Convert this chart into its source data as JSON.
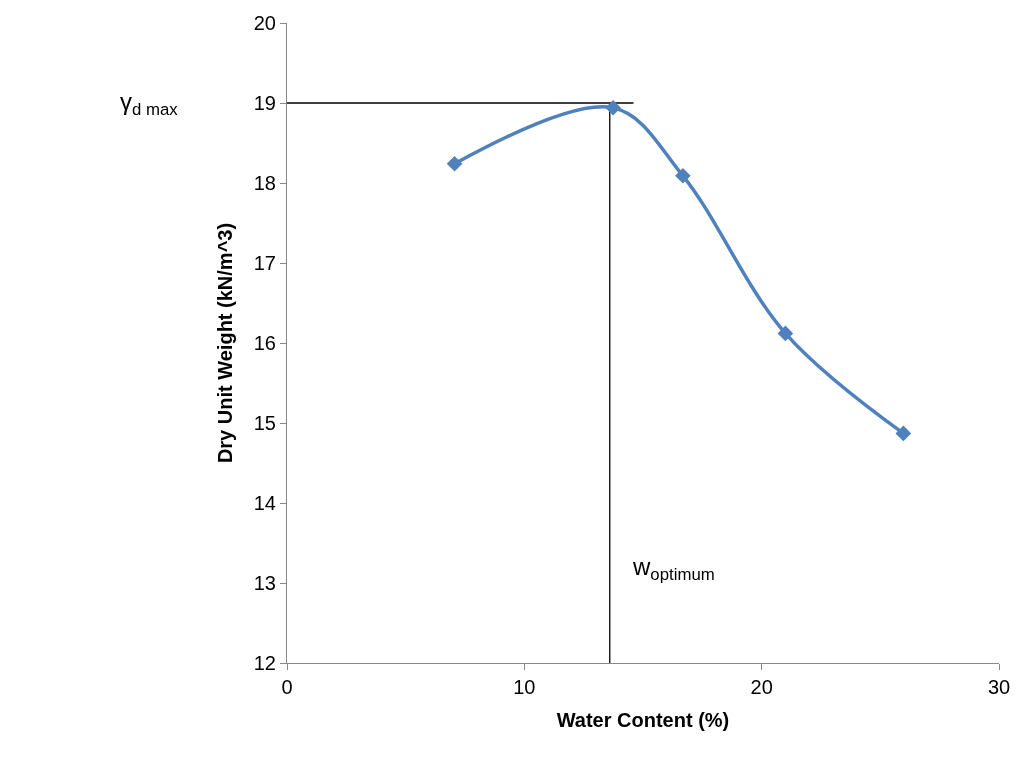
{
  "chart_data": {
    "type": "line",
    "xlabel": "Water Content (%)",
    "ylabel": "Dry Unit Weight (kN/m^3)",
    "x": [
      7.06,
      13.74,
      16.68,
      21.0,
      25.97
    ],
    "series": [
      {
        "color": "#4f81bd",
        "values": [
          18.24,
          18.94,
          18.09,
          16.12,
          14.87
        ]
      }
    ],
    "xlim": [
      0,
      30
    ],
    "xticks": [
      0,
      10,
      20,
      30
    ],
    "ylim": [
      12,
      20
    ],
    "yticks": [
      12,
      13,
      14,
      15,
      16,
      17,
      18,
      19,
      20
    ],
    "marker": "diamond",
    "grid": false,
    "legend": false,
    "ref_lines": [
      {
        "axis": "y",
        "value": 19,
        "label": "γ$_{d max}$",
        "color": "#000000"
      },
      {
        "axis": "x",
        "value": 13.6,
        "label": "w$_{optimum}$",
        "color": "#000000"
      }
    ]
  }
}
